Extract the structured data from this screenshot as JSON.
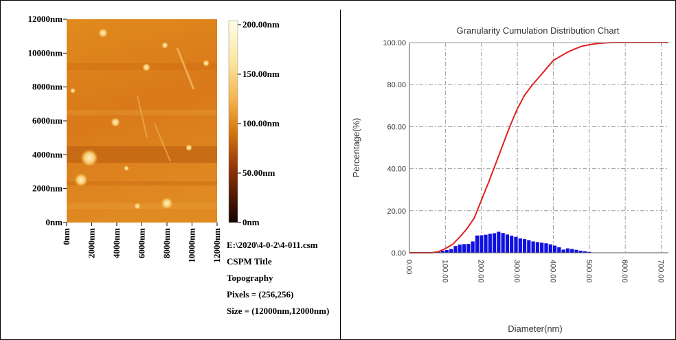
{
  "afm_image": {
    "y_ticks": [
      "12000nm",
      "10000nm",
      "8000nm",
      "6000nm",
      "4000nm",
      "2000nm",
      "0nm"
    ],
    "x_ticks": [
      "0nm",
      "2000nm",
      "4000nm",
      "6000nm",
      "8000nm",
      "10000nm",
      "12000nm"
    ],
    "colorbar_ticks": [
      "200.00nm",
      "150.00nm",
      "100.00nm",
      "50.00nm",
      "0nm"
    ],
    "colorbar_colors": [
      "#fffde8",
      "#f7c24a",
      "#d8760e",
      "#8a2e05",
      "#150300"
    ],
    "info": {
      "file": "E:\\2020\\4-0-2\\4-011.csm",
      "title": "CSPM Title",
      "mode": "Topography",
      "pixels": "Pixels = (256,256)",
      "size": "Size = (12000nm,12000nm)"
    }
  },
  "chart_data": {
    "type": "line",
    "title": "Granularity Cumulation Distribution  Chart",
    "xlabel": "Diameter(nm)",
    "ylabel": "Percentage(%)",
    "xlim": [
      0,
      720
    ],
    "ylim": [
      0,
      100
    ],
    "x_ticks": [
      "0.00",
      "100.00",
      "200.00",
      "300.00",
      "400.00",
      "500.00",
      "600.00",
      "700.00"
    ],
    "y_ticks": [
      "0.00",
      "20.00",
      "40.00",
      "60.00",
      "80.00",
      "100.00"
    ],
    "grid": true,
    "cumulative": {
      "color": "#e02020",
      "x": [
        0,
        60,
        80,
        100,
        120,
        140,
        160,
        180,
        200,
        220,
        240,
        260,
        280,
        300,
        320,
        340,
        360,
        380,
        400,
        420,
        440,
        460,
        480,
        500,
        520,
        540,
        560,
        580,
        600,
        650,
        720
      ],
      "y": [
        0,
        0,
        0.5,
        2,
        4,
        7.5,
        11.5,
        16.5,
        25,
        33.5,
        42.5,
        51.5,
        60.5,
        68.5,
        75,
        79.5,
        83.5,
        87.5,
        91.5,
        93.5,
        95.5,
        97,
        98.3,
        99,
        99.5,
        99.8,
        100,
        100,
        100,
        100,
        100
      ]
    },
    "histogram": {
      "color": "#1010e0",
      "x": [
        80,
        92,
        104,
        116,
        128,
        140,
        152,
        164,
        176,
        188,
        200,
        212,
        224,
        236,
        248,
        260,
        272,
        284,
        296,
        308,
        320,
        332,
        344,
        356,
        368,
        380,
        392,
        404,
        416,
        428,
        440,
        452,
        464,
        476,
        488,
        500
      ],
      "values": [
        0.6,
        1.0,
        1.3,
        1.8,
        3.2,
        3.9,
        4.1,
        4.2,
        5.4,
        8.2,
        8.3,
        8.6,
        9.0,
        9.3,
        10.0,
        9.4,
        8.7,
        8.1,
        7.6,
        6.8,
        6.5,
        6.0,
        5.4,
        5.1,
        4.8,
        4.5,
        4.0,
        3.4,
        2.6,
        1.5,
        2.1,
        1.8,
        1.4,
        1.0,
        0.7,
        0.4
      ],
      "bar_width": 10
    }
  }
}
